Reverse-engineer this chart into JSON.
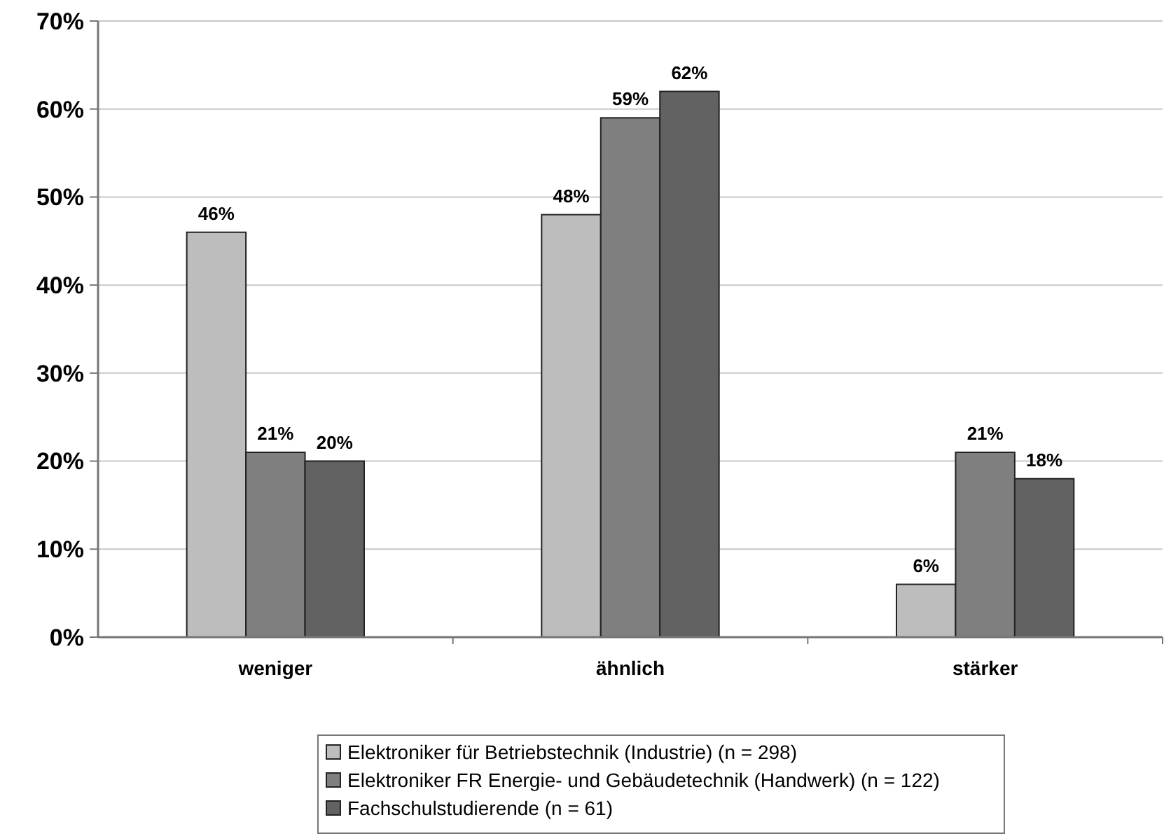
{
  "chart_data": {
    "type": "bar",
    "categories": [
      "weniger",
      "ähnlich",
      "stärker"
    ],
    "series": [
      {
        "name": "Elektroniker für Betriebstechnik (Industrie) (n = 298)",
        "color": "#bdbdbd",
        "values": [
          46,
          48,
          6
        ],
        "value_labels": [
          "46%",
          "48%",
          "6%"
        ]
      },
      {
        "name": "Elektroniker FR Energie- und Gebäudetechnik (Handwerk) (n = 122)",
        "color": "#7f7f7f",
        "values": [
          21,
          59,
          21
        ],
        "value_labels": [
          "21%",
          "59%",
          "21%"
        ]
      },
      {
        "name": "Fachschulstudierende (n = 61)",
        "color": "#626262",
        "values": [
          20,
          62,
          18
        ],
        "value_labels": [
          "20%",
          "62%",
          "18%"
        ]
      }
    ],
    "ylim": [
      0,
      70
    ],
    "yticks": [
      {
        "value": 0,
        "label": "0%"
      },
      {
        "value": 10,
        "label": "10%"
      },
      {
        "value": 20,
        "label": "20%"
      },
      {
        "value": 30,
        "label": "30%"
      },
      {
        "value": 40,
        "label": "40%"
      },
      {
        "value": 50,
        "label": "50%"
      },
      {
        "value": 60,
        "label": "60%"
      },
      {
        "value": 70,
        "label": "70%"
      }
    ],
    "grid": "y",
    "legend": "bottom"
  }
}
